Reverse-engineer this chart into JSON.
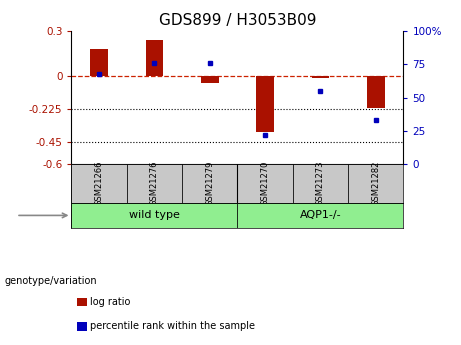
{
  "title": "GDS899 / H3053B09",
  "samples": [
    "GSM21266",
    "GSM21276",
    "GSM21279",
    "GSM21270",
    "GSM21273",
    "GSM21282"
  ],
  "log_ratio": [
    0.18,
    0.24,
    -0.05,
    -0.38,
    -0.02,
    -0.22
  ],
  "percentile_rank": [
    68,
    76,
    76,
    22,
    55,
    33
  ],
  "ylim_left": [
    -0.6,
    0.3
  ],
  "ylim_right": [
    0,
    100
  ],
  "yticks_left": [
    -0.6,
    -0.45,
    -0.225,
    0.0,
    0.3
  ],
  "yticks_right": [
    0,
    25,
    50,
    75,
    100
  ],
  "ytick_labels_left": [
    "-0.6",
    "-0.45",
    "-0.225",
    "0",
    "0.3"
  ],
  "ytick_labels_right": [
    "0",
    "25",
    "50",
    "75",
    "100%"
  ],
  "hlines_dotted": [
    -0.225,
    -0.45
  ],
  "bar_color": "#AA1100",
  "dot_color": "#0000BB",
  "ref_line_y": 0.0,
  "ref_line_color": "#CC2200",
  "background_color": "#ffffff",
  "sample_bg_color": "#C8C8C8",
  "group_bg_color": "#90EE90",
  "genotype_label": "genotype/variation",
  "legend_log_ratio": "log ratio",
  "legend_percentile": "percentile rank within the sample",
  "title_fontsize": 11,
  "tick_fontsize": 7.5,
  "bar_width": 0.32
}
